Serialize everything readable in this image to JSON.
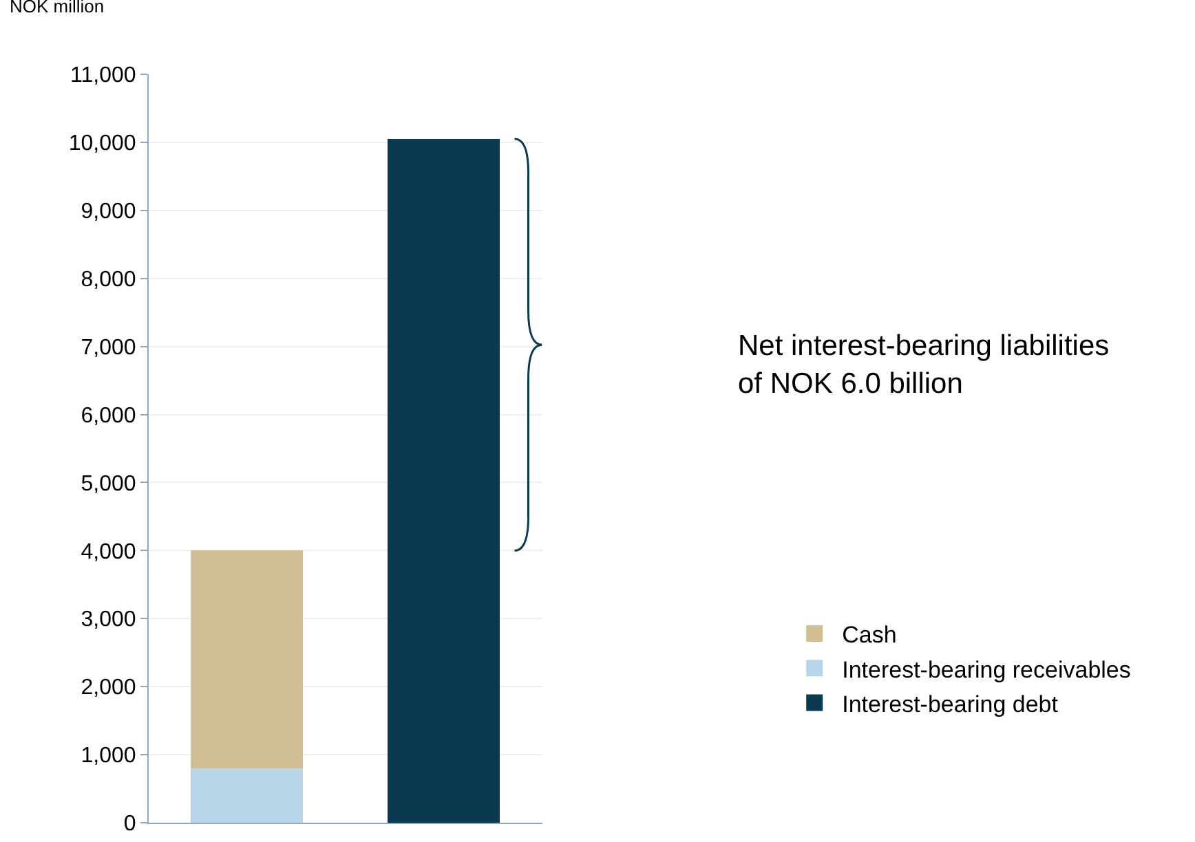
{
  "chart_data": {
    "type": "bar",
    "ylabel": "NOK million",
    "categories": [
      null,
      null
    ],
    "stacked": true,
    "series": [
      {
        "name": "Interest-bearing debt",
        "color": "#0b3a50",
        "values": [
          null,
          10050
        ]
      },
      {
        "name": "Interest-bearing receivables",
        "color": "#b8d4e8",
        "values": [
          800,
          null
        ]
      },
      {
        "name": "Cash",
        "color": "#d0bf94",
        "values": [
          3200,
          null
        ]
      }
    ],
    "ylim": [
      0,
      11000
    ],
    "yticks": [
      0,
      {
        "value": 1000,
        "label": "1,000"
      },
      {
        "value": 2000,
        "label": "2,000"
      },
      {
        "value": 3000,
        "label": "3,000"
      },
      {
        "value": 4000,
        "label": "4,000"
      },
      {
        "value": 5000,
        "label": "5,000"
      },
      {
        "value": 6000,
        "label": "6,000"
      },
      {
        "value": 7000,
        "label": "7,000"
      },
      {
        "value": 8000,
        "label": "8,000"
      },
      {
        "value": 9000,
        "label": "9,000"
      },
      {
        "value": 10000,
        "label": "10,000"
      },
      {
        "value": 11000,
        "label": "11,000"
      }
    ],
    "grid": "y",
    "legend": "bottom right",
    "tick_labels": "y",
    "annotations": [
      "Net interest-bearing liabilities\nof NOK 6.0 billion"
    ]
  }
}
